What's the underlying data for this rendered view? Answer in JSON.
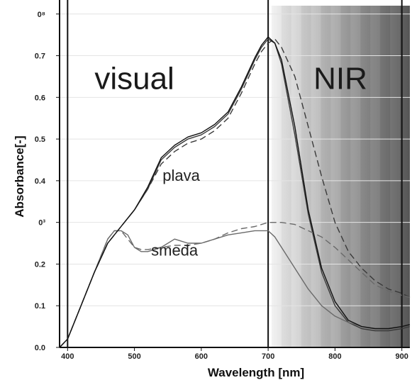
{
  "chart_data": {
    "type": "line",
    "xlabel": "Wavelength [nm]",
    "ylabel": "Absorbance[-]",
    "xlim": [
      388,
      912
    ],
    "ylim": [
      0,
      0.82
    ],
    "x_ticks": [
      {
        "value": 400,
        "label": "400"
      },
      {
        "value": 500,
        "label": "500"
      },
      {
        "value": 600,
        "label": "600"
      },
      {
        "value": 700,
        "label": "700"
      },
      {
        "value": 800,
        "label": "800"
      },
      {
        "value": 900,
        "label": "900"
      }
    ],
    "y_ticks": [
      {
        "value": 0.0,
        "label": "0.0"
      },
      {
        "value": 0.1,
        "label": "0.1"
      },
      {
        "value": 0.2,
        "label": "0.2"
      },
      {
        "value": 0.3,
        "label": "0³"
      },
      {
        "value": 0.4,
        "label": "0.4"
      },
      {
        "value": 0.5,
        "label": "0.5"
      },
      {
        "value": 0.6,
        "label": "0.6"
      },
      {
        "value": 0.7,
        "label": "0.7"
      },
      {
        "value": 0.8,
        "label": "0⁸"
      }
    ],
    "grid": "horizontal, faint",
    "vertical_lines": [
      {
        "value": 400,
        "label": "visual-start"
      },
      {
        "value": 700,
        "label": "visual-nir-boundary"
      },
      {
        "value": 900,
        "label": "nir-end"
      }
    ],
    "nir_shading": {
      "from": 705,
      "to": 912,
      "colors": [
        "#f2f2f2",
        "#5a5a5a"
      ]
    },
    "regions": [
      {
        "label": "visual",
        "x": 500
      },
      {
        "label": "NIR",
        "x": 808
      }
    ],
    "annotations": [
      {
        "text": "plava",
        "x": 570,
        "y": 0.4
      },
      {
        "text": "smeđa",
        "x": 560,
        "y": 0.22
      }
    ],
    "series": [
      {
        "style": "solid",
        "color": "#3a3a3a",
        "x": [
          388,
          400,
          420,
          440,
          460,
          480,
          500,
          520,
          540,
          560,
          580,
          600,
          620,
          640,
          660,
          680,
          690,
          700,
          710,
          720,
          740,
          760,
          780,
          800,
          820,
          840,
          860,
          880,
          900,
          912
        ],
        "y": [
          0.0,
          0.02,
          0.1,
          0.18,
          0.25,
          0.29,
          0.33,
          0.38,
          0.45,
          0.48,
          0.5,
          0.51,
          0.53,
          0.56,
          0.62,
          0.69,
          0.72,
          0.74,
          0.73,
          0.68,
          0.51,
          0.32,
          0.18,
          0.1,
          0.06,
          0.045,
          0.04,
          0.04,
          0.045,
          0.05
        ]
      },
      {
        "style": "dashed",
        "color": "#3a3a3a",
        "x": [
          388,
          400,
          420,
          440,
          460,
          480,
          500,
          520,
          540,
          560,
          580,
          600,
          620,
          640,
          660,
          680,
          690,
          700,
          710,
          720,
          740,
          760,
          780,
          800,
          820,
          840,
          860,
          880,
          900,
          912
        ],
        "y": [
          0.0,
          0.02,
          0.1,
          0.18,
          0.25,
          0.29,
          0.33,
          0.38,
          0.44,
          0.47,
          0.49,
          0.5,
          0.52,
          0.55,
          0.61,
          0.68,
          0.71,
          0.73,
          0.74,
          0.72,
          0.65,
          0.53,
          0.41,
          0.3,
          0.23,
          0.19,
          0.16,
          0.14,
          0.13,
          0.12
        ]
      },
      {
        "style": "solid",
        "color": "#6a6a6a",
        "x": [
          388,
          400,
          420,
          440,
          460,
          470,
          480,
          490,
          500,
          510,
          520,
          540,
          560,
          580,
          600,
          620,
          640,
          660,
          680,
          700,
          710,
          720,
          740,
          760,
          780,
          800,
          820,
          840,
          860,
          880,
          900,
          912
        ],
        "y": [
          0.0,
          0.02,
          0.1,
          0.18,
          0.26,
          0.28,
          0.28,
          0.27,
          0.24,
          0.23,
          0.23,
          0.24,
          0.26,
          0.25,
          0.25,
          0.26,
          0.27,
          0.275,
          0.28,
          0.28,
          0.265,
          0.24,
          0.19,
          0.14,
          0.1,
          0.075,
          0.06,
          0.05,
          0.045,
          0.045,
          0.05,
          0.055
        ]
      },
      {
        "style": "dashed",
        "color": "#6a6a6a",
        "x": [
          388,
          400,
          420,
          440,
          460,
          470,
          480,
          490,
          500,
          510,
          520,
          540,
          560,
          580,
          600,
          620,
          640,
          660,
          680,
          700,
          720,
          740,
          760,
          780,
          800,
          820,
          840,
          860,
          880,
          900,
          912
        ],
        "y": [
          0.0,
          0.02,
          0.1,
          0.18,
          0.26,
          0.28,
          0.28,
          0.26,
          0.24,
          0.235,
          0.235,
          0.24,
          0.245,
          0.245,
          0.25,
          0.26,
          0.275,
          0.285,
          0.29,
          0.3,
          0.3,
          0.295,
          0.28,
          0.265,
          0.24,
          0.21,
          0.18,
          0.15,
          0.135,
          0.125,
          0.12
        ]
      },
      {
        "style": "solid",
        "color": "#111111",
        "x": [
          388,
          400,
          420,
          440,
          460,
          480,
          500,
          520,
          540,
          560,
          580,
          600,
          620,
          640,
          660,
          680,
          690,
          700,
          710,
          720,
          740,
          760,
          780,
          800,
          820,
          840,
          860,
          880,
          900,
          912
        ],
        "y": [
          0.0,
          0.02,
          0.1,
          0.18,
          0.25,
          0.29,
          0.33,
          0.385,
          0.455,
          0.485,
          0.505,
          0.515,
          0.535,
          0.565,
          0.625,
          0.695,
          0.725,
          0.745,
          0.73,
          0.69,
          0.53,
          0.33,
          0.19,
          0.11,
          0.065,
          0.05,
          0.045,
          0.045,
          0.05,
          0.055
        ]
      }
    ]
  }
}
